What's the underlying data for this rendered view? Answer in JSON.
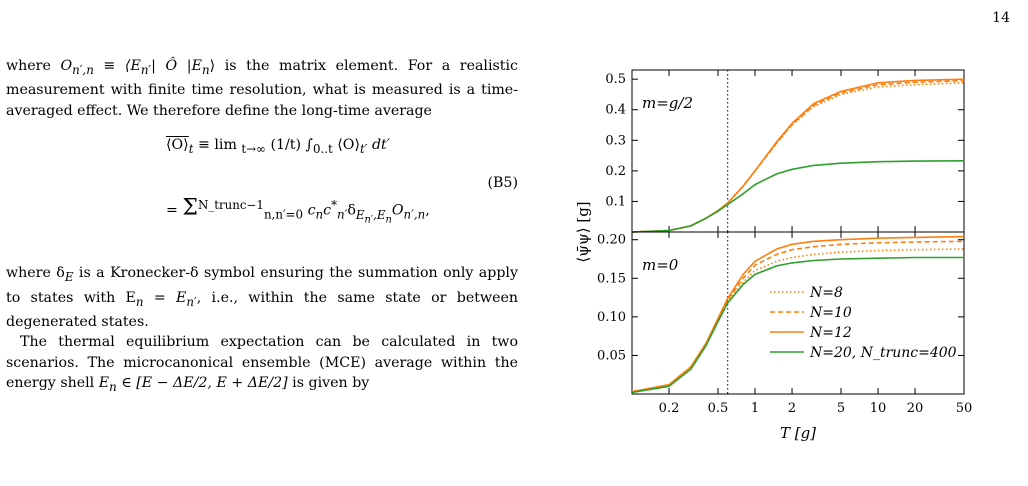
{
  "page_number": "14",
  "text": {
    "p1_prefix": "where ",
    "p1_sym": "O",
    "p1_sub": "n′,n",
    "p1_def": " ≡ ⟨E",
    "p1_def2": "n′",
    "p1_def3": "| Ô |E",
    "p1_def4": "n",
    "p1_def5": "⟩",
    "p1_rest": " is the matrix element. For a realistic measurement with finite time resolution, what is measured is a time-averaged effect. We therefore define the long-time average",
    "eq_lhs": "⟨O⟩",
    "eq_lhs_sub": "t",
    "eq_line1_mid": " ≡  lim ",
    "eq_line1_lim": "t→∞",
    "eq_line1_rest": " (1/t) ∫",
    "eq_int_lims": "0..t",
    "eq_line1_tail": " ⟨O⟩",
    "eq_line1_tail_sub": "t′",
    "eq_line1_dt": "dt′",
    "eq_line2_prefix": "=  ",
    "eq_sum_top": "N_trunc−1",
    "eq_sum_bottom": "n,n′=0",
    "eq_line2_body": " c",
    "eq_line2_body2": "n",
    "eq_line2_body3": "c",
    "eq_line2_body4": "*",
    "eq_line2_body5": "n′",
    "eq_line2_body6": "δ",
    "eq_line2_body7": "E",
    "eq_line2_body8": "n′",
    "eq_line2_body9": ",E",
    "eq_line2_body10": "n",
    "eq_line2_body11": "O",
    "eq_line2_body12": "n′,n",
    "eq_line2_end": ",",
    "eq_number": "(B5)",
    "p2_prefix": "where δ",
    "p2_sub": "E",
    "p2_rest": " is a Kronecker-δ symbol ensuring the summation only apply to states with E",
    "p2_rest_sub1": "n",
    "p2_rest_eq": " = E",
    "p2_rest_sub2": "n′",
    "p2_tail": ", i.e., within the same state or between degenerated states.",
    "p3_part1": "The thermal equilibrium expectation can be calculated in two scenarios. The microcanonical ensemble (MCE) average within the energy shell ",
    "p3_math": "E",
    "p3_math_sub": "n",
    "p3_math_rest": " ∈ [E − ΔE/2, E + ΔE/2]",
    "p3_tail": " is given by"
  },
  "chart_data": {
    "type": "line",
    "xlabel": "T [g]",
    "ylabel": "⟨ψ̄ψ⟩ [g]",
    "xscale": "log",
    "xlim": [
      0.1,
      50
    ],
    "xticks": [
      0.2,
      0.5,
      1,
      2,
      5,
      10,
      20,
      50
    ],
    "xtick_labels": [
      "0.2",
      "0.5",
      "1",
      "2",
      "5",
      "10",
      "20",
      "50"
    ],
    "vline_x": 0.6,
    "panels": [
      {
        "annotation": "m=g/2",
        "ylim": [
          0,
          0.53
        ],
        "yticks": [
          0.1,
          0.2,
          0.3,
          0.4,
          0.5
        ],
        "ytick_labels": [
          "0.1",
          "0.2",
          "0.3",
          "0.4",
          "0.5"
        ],
        "x": [
          0.1,
          0.2,
          0.3,
          0.4,
          0.5,
          0.6,
          0.8,
          1,
          1.5,
          2,
          3,
          5,
          10,
          20,
          50
        ],
        "series": [
          {
            "name": "N=8",
            "style": "dotted",
            "color": "#ff7f0e",
            "values": [
              0.0,
              0.005,
              0.02,
              0.045,
              0.07,
              0.095,
              0.15,
              0.2,
              0.29,
              0.35,
              0.41,
              0.45,
              0.475,
              0.482,
              0.488
            ]
          },
          {
            "name": "N=10",
            "style": "dashed",
            "color": "#ff7f0e",
            "values": [
              0.0,
              0.005,
              0.02,
              0.045,
              0.07,
              0.095,
              0.15,
              0.2,
              0.292,
              0.352,
              0.415,
              0.455,
              0.482,
              0.49,
              0.495
            ]
          },
          {
            "name": "N=12",
            "style": "solid",
            "color": "#ff7f0e",
            "values": [
              0.0,
              0.005,
              0.02,
              0.045,
              0.07,
              0.095,
              0.15,
              0.2,
              0.295,
              0.355,
              0.42,
              0.46,
              0.488,
              0.496,
              0.5
            ]
          },
          {
            "name": "N=20, N_trunc=400",
            "style": "solid",
            "color": "#2ca02c",
            "values": [
              0.0,
              0.005,
              0.02,
              0.045,
              0.068,
              0.09,
              0.125,
              0.155,
              0.19,
              0.205,
              0.218,
              0.225,
              0.23,
              0.232,
              0.233
            ]
          }
        ]
      },
      {
        "annotation": "m=0",
        "ylim": [
          0,
          0.21
        ],
        "yticks": [
          0.05,
          0.1,
          0.15,
          0.2
        ],
        "ytick_labels": [
          "0.05",
          "0.10",
          "0.15",
          "0.20"
        ],
        "x": [
          0.1,
          0.2,
          0.3,
          0.4,
          0.5,
          0.6,
          0.8,
          1,
          1.5,
          2,
          3,
          5,
          10,
          20,
          50
        ],
        "series": [
          {
            "name": "N=8",
            "style": "dotted",
            "color": "#ff7f0e",
            "values": [
              0.003,
              0.012,
              0.035,
              0.065,
              0.095,
              0.12,
              0.145,
              0.16,
              0.172,
              0.177,
              0.181,
              0.184,
              0.186,
              0.187,
              0.188
            ]
          },
          {
            "name": "N=10",
            "style": "dashed",
            "color": "#ff7f0e",
            "values": [
              0.003,
              0.012,
              0.035,
              0.065,
              0.096,
              0.122,
              0.15,
              0.167,
              0.181,
              0.187,
              0.191,
              0.194,
              0.196,
              0.197,
              0.198
            ]
          },
          {
            "name": "N=12",
            "style": "solid",
            "color": "#ff7f0e",
            "values": [
              0.003,
              0.012,
              0.035,
              0.066,
              0.098,
              0.124,
              0.155,
              0.172,
              0.188,
              0.194,
              0.198,
              0.2,
              0.202,
              0.203,
              0.204
            ]
          },
          {
            "name": "N=20, N_trunc=400",
            "style": "solid",
            "color": "#2ca02c",
            "values": [
              0.002,
              0.01,
              0.032,
              0.063,
              0.094,
              0.118,
              0.142,
              0.155,
              0.166,
              0.17,
              0.173,
              0.175,
              0.176,
              0.177,
              0.177
            ]
          }
        ]
      }
    ],
    "legend": {
      "placement": "lower-right of bottom panel",
      "entries": [
        "N=8",
        "N=10",
        "N=12",
        "N=20, N_trunc=400"
      ]
    }
  }
}
